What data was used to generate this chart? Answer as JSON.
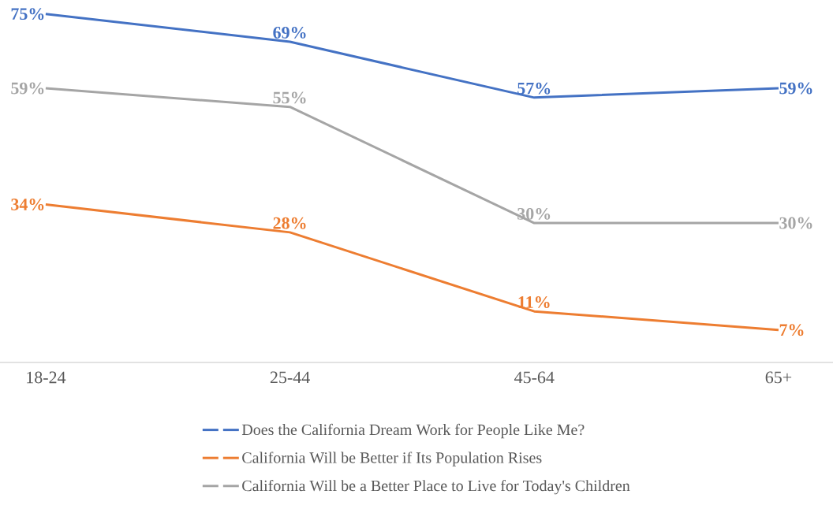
{
  "chart_data": {
    "type": "line",
    "categories": [
      "18-24",
      "25-44",
      "45-64",
      "65+"
    ],
    "series": [
      {
        "name": "Does the California Dream Work for People Like Me?",
        "color": "#4472c4",
        "values": [
          75,
          69,
          57,
          59
        ],
        "value_labels": [
          "75%",
          "69%",
          "57%",
          "59%"
        ]
      },
      {
        "name": "California Will be Better if Its Population Rises",
        "color": "#ed7d31",
        "values": [
          34,
          28,
          11,
          7
        ],
        "value_labels": [
          "34%",
          "28%",
          "11%",
          "7%"
        ]
      },
      {
        "name": "California Will be a Better Place to Live for Today's Children",
        "color": "#a5a5a5",
        "values": [
          59,
          55,
          30,
          30
        ],
        "value_labels": [
          "59%",
          "55%",
          "30%",
          "30%"
        ]
      }
    ],
    "tick_labels": "x",
    "legend": "bottom",
    "grid": false
  }
}
